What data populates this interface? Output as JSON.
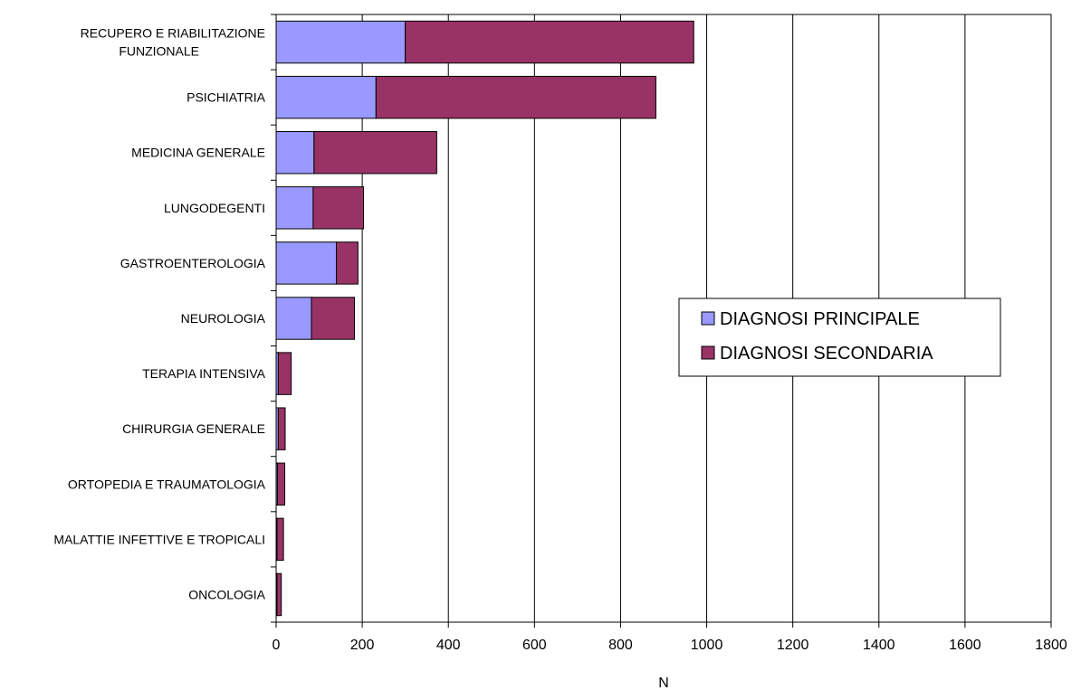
{
  "chart_data": {
    "type": "bar",
    "orientation": "horizontal",
    "stacked": true,
    "categories": [
      [
        "RECUPERO E RIABILITAZIONE",
        "FUNZIONALE"
      ],
      [
        "PSICHIATRIA"
      ],
      [
        "MEDICINA GENERALE"
      ],
      [
        "LUNGODEGENTI"
      ],
      [
        "GASTROENTEROLOGIA"
      ],
      [
        "NEUROLOGIA"
      ],
      [
        "TERAPIA INTENSIVA"
      ],
      [
        "CHIRURGIA GENERALE"
      ],
      [
        "ORTOPEDIA E TRAUMATOLOGIA"
      ],
      [
        "MALATTIE INFETTIVE E TROPICALI"
      ],
      [
        "ONCOLOGIA"
      ]
    ],
    "series": [
      {
        "name": "DIAGNOSI PRINCIPALE",
        "color": "#9999ff",
        "values": [
          300,
          232,
          88,
          86,
          140,
          82,
          5,
          5,
          3,
          2,
          2
        ]
      },
      {
        "name": "DIAGNOSI SECONDARIA",
        "color": "#993366",
        "values": [
          670,
          650,
          285,
          117,
          50,
          100,
          30,
          16,
          17,
          15,
          10
        ]
      }
    ],
    "xlim": [
      0,
      1800
    ],
    "xticks": [
      0,
      200,
      400,
      600,
      800,
      1000,
      1200,
      1400,
      1600,
      1800
    ],
    "xlabel": "N",
    "ylabel": "",
    "title": "",
    "grid": "vertical",
    "legend_position": "right-middle"
  }
}
